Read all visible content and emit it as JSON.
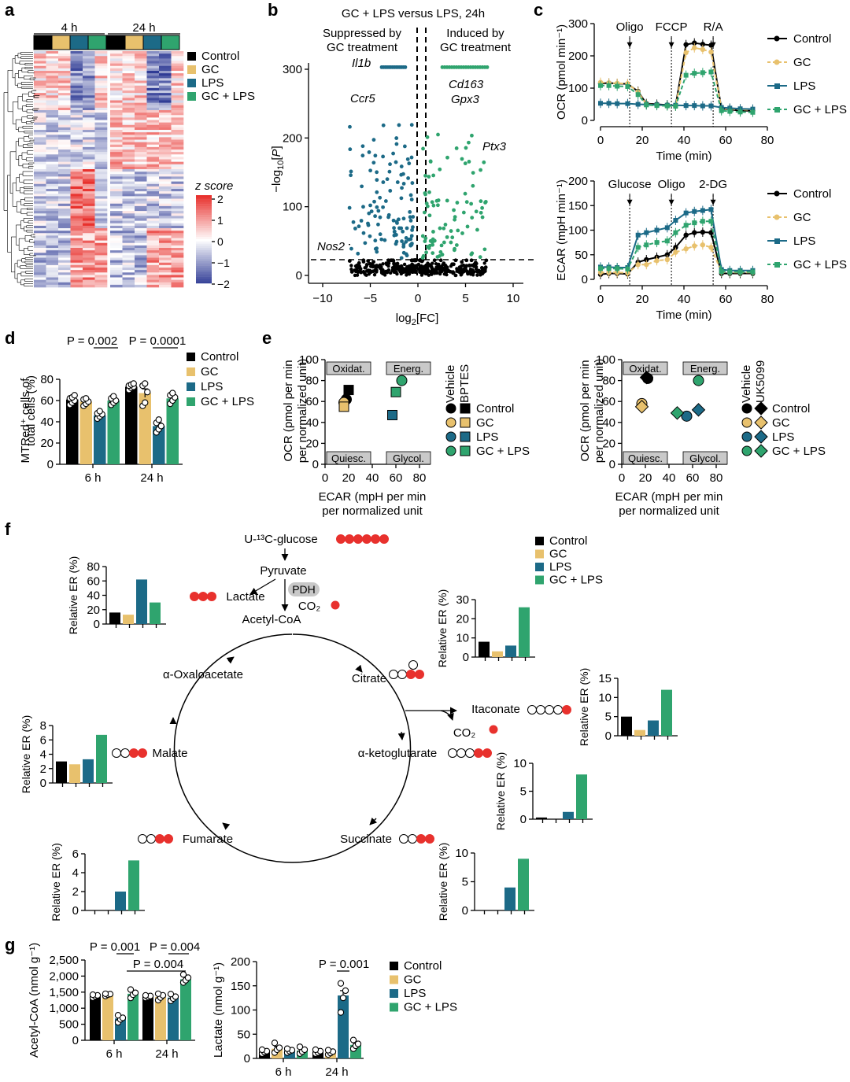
{
  "colors": {
    "control": "#000000",
    "gc": "#e8c16d",
    "lps": "#1c6a87",
    "gclps": "#2fa46e",
    "red": "#e8312d",
    "volcano_left": "#1c6a87",
    "volcano_right": "#2fa46e",
    "hm_hi": "#e8312d",
    "hm_lo": "#2f3b95"
  },
  "panel_labels": {
    "a": "a",
    "b": "b",
    "c": "c",
    "d": "d",
    "e": "e",
    "f": "f",
    "g": "g"
  },
  "legend_groups": [
    "Control",
    "GC",
    "LPS",
    "GC + LPS"
  ],
  "panel_a": {
    "time_labels": [
      "4 h",
      "24 h"
    ],
    "zscore_title": "z score",
    "zscore_ticks": [
      "2",
      "1",
      "0",
      "−1",
      "−2"
    ]
  },
  "panel_b": {
    "title": "GC + LPS versus LPS, 24h",
    "left_annotation": [
      "Suppressed by",
      "GC treatment"
    ],
    "right_annotation": [
      "Induced by",
      "GC treatment"
    ],
    "ylabel": "−log10[P]",
    "xlabel": "log2[FC]",
    "xticks": [
      -10,
      -5,
      0,
      5,
      10
    ],
    "yticks": [
      0,
      100,
      200,
      300
    ],
    "genes": [
      "Il1b",
      "Ccr5",
      "Cd163",
      "Gpx3",
      "Ptx3",
      "Nos2"
    ]
  },
  "chart_data": [
    {
      "panel": "c-top",
      "type": "line",
      "ylabel": "OCR (pmol min⁻¹)",
      "xlabel": "Time (min)",
      "ylim": [
        0,
        300
      ],
      "xlim": [
        0,
        80
      ],
      "injections": [
        {
          "label": "Oligo",
          "x": 14
        },
        {
          "label": "FCCP",
          "x": 34
        },
        {
          "label": "R/A",
          "x": 54
        }
      ],
      "x": [
        0,
        4,
        8,
        13,
        18,
        22,
        27,
        32,
        36,
        41,
        45,
        49,
        53,
        58,
        62,
        67,
        73
      ],
      "series": [
        {
          "name": "Control",
          "values": [
            114,
            116,
            114,
            113,
            90,
            52,
            50,
            48,
            46,
            235,
            240,
            236,
            233,
            36,
            34,
            30,
            30
          ]
        },
        {
          "name": "GC",
          "values": [
            118,
            116,
            115,
            114,
            88,
            50,
            48,
            46,
            44,
            210,
            225,
            220,
            212,
            38,
            36,
            34,
            32
          ]
        },
        {
          "name": "LPS",
          "values": [
            53,
            53,
            52,
            52,
            50,
            49,
            48,
            47,
            47,
            46,
            46,
            45,
            45,
            40,
            38,
            36,
            35
          ]
        },
        {
          "name": "GC + LPS",
          "values": [
            108,
            108,
            106,
            105,
            80,
            48,
            46,
            45,
            44,
            140,
            146,
            148,
            150,
            30,
            28,
            26,
            25
          ]
        }
      ]
    },
    {
      "panel": "c-bottom",
      "type": "line",
      "ylabel": "ECAR (mpH min⁻¹)",
      "xlabel": "Time (min)",
      "ylim": [
        0,
        200
      ],
      "xlim": [
        0,
        80
      ],
      "injections": [
        {
          "label": "Glucose",
          "x": 14
        },
        {
          "label": "Oligo",
          "x": 34
        },
        {
          "label": "2-DG",
          "x": 54
        }
      ],
      "x": [
        0,
        4,
        8,
        13,
        18,
        22,
        27,
        32,
        36,
        41,
        45,
        49,
        53,
        58,
        62,
        67,
        73
      ],
      "series": [
        {
          "name": "Control",
          "values": [
            10,
            12,
            12,
            11,
            35,
            40,
            45,
            50,
            65,
            90,
            95,
            96,
            95,
            12,
            12,
            12,
            12
          ]
        },
        {
          "name": "GC",
          "values": [
            14,
            14,
            14,
            13,
            30,
            30,
            38,
            40,
            55,
            62,
            68,
            70,
            65,
            15,
            14,
            14,
            14
          ]
        },
        {
          "name": "LPS",
          "values": [
            25,
            25,
            24,
            24,
            90,
            95,
            100,
            105,
            120,
            135,
            138,
            140,
            142,
            20,
            18,
            18,
            18
          ]
        },
        {
          "name": "GC + LPS",
          "values": [
            22,
            22,
            22,
            21,
            65,
            70,
            75,
            78,
            95,
            110,
            115,
            118,
            118,
            16,
            15,
            15,
            15
          ]
        }
      ]
    },
    {
      "panel": "d",
      "type": "bar",
      "ylabel": "MTRed⁺ cells of total cells (%)",
      "ylim": [
        0,
        100
      ],
      "yticks": [
        0,
        20,
        40,
        60,
        80
      ],
      "categories": [
        "6 h",
        "24 h"
      ],
      "series": [
        {
          "name": "Control",
          "values": [
            61,
            73
          ],
          "err": [
            3,
            2
          ],
          "points": [
            [
              56,
              58,
              60,
              62,
              63,
              65
            ],
            [
              70,
              72,
              73,
              74,
              75,
              76
            ]
          ]
        },
        {
          "name": "GC",
          "values": [
            59,
            67
          ],
          "err": [
            3,
            4
          ],
          "points": [
            [
              55,
              57,
              59,
              61,
              62
            ],
            [
              55,
              58,
              68,
              74,
              76
            ]
          ]
        },
        {
          "name": "LPS",
          "values": [
            46,
            36
          ],
          "err": [
            2,
            3
          ],
          "points": [
            [
              43,
              45,
              47,
              48,
              50
            ],
            [
              30,
              33,
              36,
              39,
              42
            ]
          ]
        },
        {
          "name": "GC + LPS",
          "values": [
            60,
            62
          ],
          "err": [
            2,
            3
          ],
          "points": [
            [
              56,
              58,
              60,
              62,
              64
            ],
            [
              57,
              60,
              63,
              65,
              67
            ]
          ]
        }
      ],
      "annotations": [
        {
          "text": "P = 0.002",
          "between": [
            0,
            2
          ],
          "cat": 0
        },
        {
          "text": "P = 0.0001",
          "between": [
            0,
            2
          ],
          "cat": 1
        }
      ]
    },
    {
      "panel": "e-left",
      "type": "scatter",
      "ylabel": "OCR (pmol per min per normalized unit)",
      "xlabel": "ECAR (mpH per min per normalized unit)",
      "xlim": [
        0,
        80
      ],
      "ylim": [
        0,
        100
      ],
      "quadrants": [
        "Oxidat.",
        "Energ.",
        "Quiesc.",
        "Glycol."
      ],
      "legend_headers": [
        "Vehicle",
        "BPTES"
      ],
      "points": [
        {
          "group": "Control",
          "treat": "vehicle",
          "x": 18,
          "y": 62
        },
        {
          "group": "Control",
          "treat": "drug",
          "x": 20,
          "y": 71
        },
        {
          "group": "GC",
          "treat": "vehicle",
          "x": 16,
          "y": 59
        },
        {
          "group": "GC",
          "treat": "drug",
          "x": 16,
          "y": 55
        },
        {
          "group": "LPS",
          "treat": "drug",
          "x": 57,
          "y": 47
        },
        {
          "group": "GC + LPS",
          "treat": "vehicle",
          "x": 65,
          "y": 80
        },
        {
          "group": "GC + LPS",
          "treat": "drug",
          "x": 60,
          "y": 69
        }
      ]
    },
    {
      "panel": "e-right",
      "type": "scatter",
      "ylabel": "OCR (pmol per min per normalized unit)",
      "xlabel": "ECAR (mpH per min per normalized unit)",
      "xlim": [
        0,
        80
      ],
      "ylim": [
        0,
        100
      ],
      "quadrants": [
        "Oxidat.",
        "Energ.",
        "Quiesc.",
        "Glycol."
      ],
      "legend_headers": [
        "Vehicle",
        "UK5099"
      ],
      "points": [
        {
          "group": "Control",
          "treat": "vehicle",
          "x": 22,
          "y": 82
        },
        {
          "group": "Control",
          "treat": "drug",
          "x": 21,
          "y": 83
        },
        {
          "group": "GC",
          "treat": "vehicle",
          "x": 17,
          "y": 58
        },
        {
          "group": "GC",
          "treat": "drug",
          "x": 17,
          "y": 55
        },
        {
          "group": "LPS",
          "treat": "vehicle",
          "x": 55,
          "y": 46
        },
        {
          "group": "LPS",
          "treat": "drug",
          "x": 65,
          "y": 52
        },
        {
          "group": "GC + LPS",
          "treat": "vehicle",
          "x": 65,
          "y": 80
        },
        {
          "group": "GC + LPS",
          "treat": "drug",
          "x": 47,
          "y": 49
        }
      ]
    },
    {
      "panel": "f-lactate",
      "type": "bar",
      "metabolite": "Lactate",
      "ylabel": "Relative ER (%)",
      "ylim": [
        0,
        80
      ],
      "yticks": [
        0,
        20,
        40,
        60,
        80
      ],
      "categories": [
        "Control",
        "GC",
        "LPS",
        "GC + LPS"
      ],
      "values": [
        16,
        13,
        62,
        30
      ]
    },
    {
      "panel": "f-citrate",
      "type": "bar",
      "metabolite": "Citrate",
      "ylabel": "Relative ER (%)",
      "ylim": [
        0,
        30
      ],
      "yticks": [
        0,
        10,
        20,
        30
      ],
      "categories": [
        "Control",
        "GC",
        "LPS",
        "GC + LPS"
      ],
      "values": [
        8,
        3,
        6,
        26
      ]
    },
    {
      "panel": "f-itaconate",
      "type": "bar",
      "metabolite": "Itaconate",
      "ylabel": "Relative ER (%)",
      "ylim": [
        0,
        15
      ],
      "yticks": [
        0,
        5,
        10,
        15
      ],
      "categories": [
        "Control",
        "GC",
        "LPS",
        "GC + LPS"
      ],
      "values": [
        5,
        1.5,
        4,
        12
      ]
    },
    {
      "panel": "f-akg",
      "type": "bar",
      "metabolite": "α-ketoglutarate",
      "ylabel": "Relative ER (%)",
      "ylim": [
        0,
        10
      ],
      "yticks": [
        0,
        5,
        10
      ],
      "categories": [
        "Control",
        "GC",
        "LPS",
        "GC + LPS"
      ],
      "values": [
        0.3,
        0,
        1.3,
        8
      ]
    },
    {
      "panel": "f-succinate",
      "type": "bar",
      "metabolite": "Succinate",
      "ylabel": "Relative ER (%)",
      "ylim": [
        0,
        10
      ],
      "yticks": [
        0,
        5,
        10
      ],
      "categories": [
        "Control",
        "GC",
        "LPS",
        "GC + LPS"
      ],
      "values": [
        0,
        0,
        4,
        9
      ]
    },
    {
      "panel": "f-fumarate",
      "type": "bar",
      "metabolite": "Fumarate",
      "ylabel": "Relative ER (%)",
      "ylim": [
        0,
        6
      ],
      "yticks": [
        0,
        2,
        4,
        6
      ],
      "categories": [
        "Control",
        "GC",
        "LPS",
        "GC + LPS"
      ],
      "values": [
        0,
        0,
        2,
        5.3
      ]
    },
    {
      "panel": "f-malate",
      "type": "bar",
      "metabolite": "Malate",
      "ylabel": "Relative ER (%)",
      "ylim": [
        0,
        8
      ],
      "yticks": [
        0,
        2,
        4,
        6,
        8
      ],
      "categories": [
        "Control",
        "GC",
        "LPS",
        "GC + LPS"
      ],
      "values": [
        3,
        2.6,
        3.3,
        6.7
      ]
    },
    {
      "panel": "g-acetylcoa",
      "type": "bar",
      "ylabel": "Acetyl-CoA (nmol g⁻¹)",
      "ylim": [
        0,
        2500
      ],
      "yticks": [
        0,
        500,
        1000,
        1500,
        2000,
        2500
      ],
      "categories": [
        "6 h",
        "24 h"
      ],
      "series": [
        {
          "name": "Control",
          "values": [
            1390,
            1360
          ],
          "err": [
            40,
            40
          ],
          "points": [
            [
              1330,
              1370,
              1400,
              1420
            ],
            [
              1320,
              1350,
              1380,
              1400
            ]
          ]
        },
        {
          "name": "GC",
          "values": [
            1420,
            1350
          ],
          "err": [
            30,
            60
          ],
          "points": [
            [
              1380,
              1420,
              1440,
              1450
            ],
            [
              1250,
              1330,
              1400,
              1450
            ]
          ]
        },
        {
          "name": "LPS",
          "values": [
            680,
            1330
          ],
          "err": [
            70,
            70
          ],
          "points": [
            [
              560,
              650,
              700,
              780
            ],
            [
              1230,
              1300,
              1360,
              1440
            ]
          ]
        },
        {
          "name": "GC + LPS",
          "values": [
            1450,
            1900
          ],
          "err": [
            80,
            70
          ],
          "points": [
            [
              1320,
              1420,
              1480,
              1580
            ],
            [
              1800,
              1870,
              1950,
              2050
            ]
          ]
        }
      ],
      "annotations": [
        {
          "text": "P = 0.001"
        },
        {
          "text": "P = 0.004"
        },
        {
          "text": "P = 0.004"
        }
      ]
    },
    {
      "panel": "g-lactate",
      "type": "bar",
      "ylabel": "Lactate (nmol g⁻¹)",
      "ylim": [
        0,
        200
      ],
      "yticks": [
        0,
        50,
        100,
        150,
        200
      ],
      "categories": [
        "6 h",
        "24 h"
      ],
      "series": [
        {
          "name": "Control",
          "values": [
            14,
            14
          ],
          "err": [
            3,
            3
          ],
          "points": [
            [
              10,
              13,
              15,
              18
            ],
            [
              10,
              12,
              15,
              18
            ]
          ]
        },
        {
          "name": "GC",
          "values": [
            20,
            12
          ],
          "err": [
            5,
            3
          ],
          "points": [
            [
              12,
              18,
              22,
              32
            ],
            [
              8,
              11,
              14,
              17
            ]
          ]
        },
        {
          "name": "LPS",
          "values": [
            16,
            130
          ],
          "err": [
            3,
            10
          ],
          "points": [
            [
              12,
              15,
              17,
              20
            ],
            [
              95,
              125,
              140,
              155
            ]
          ]
        },
        {
          "name": "GC + LPS",
          "values": [
            16,
            28
          ],
          "err": [
            4,
            4
          ],
          "points": [
            [
              10,
              14,
              18,
              24
            ],
            [
              20,
              26,
              30,
              38
            ]
          ]
        }
      ],
      "annotations": [
        {
          "text": "P = 0.001"
        }
      ]
    }
  ],
  "panel_f": {
    "glucose": "U-¹³C-glucose",
    "pyruvate": "Pyruvate",
    "pdh": "PDH",
    "acetylcoa": "Acetyl-CoA",
    "co2": "CO₂",
    "lactate": "Lactate",
    "citrate": "Citrate",
    "itaconate": "Itaconate",
    "akg": "α-ketoglutarate",
    "succinate": "Succinate",
    "fumarate": "Fumarate",
    "malate": "Malate",
    "oxaloacetate": "α-Oxaloacetate"
  }
}
